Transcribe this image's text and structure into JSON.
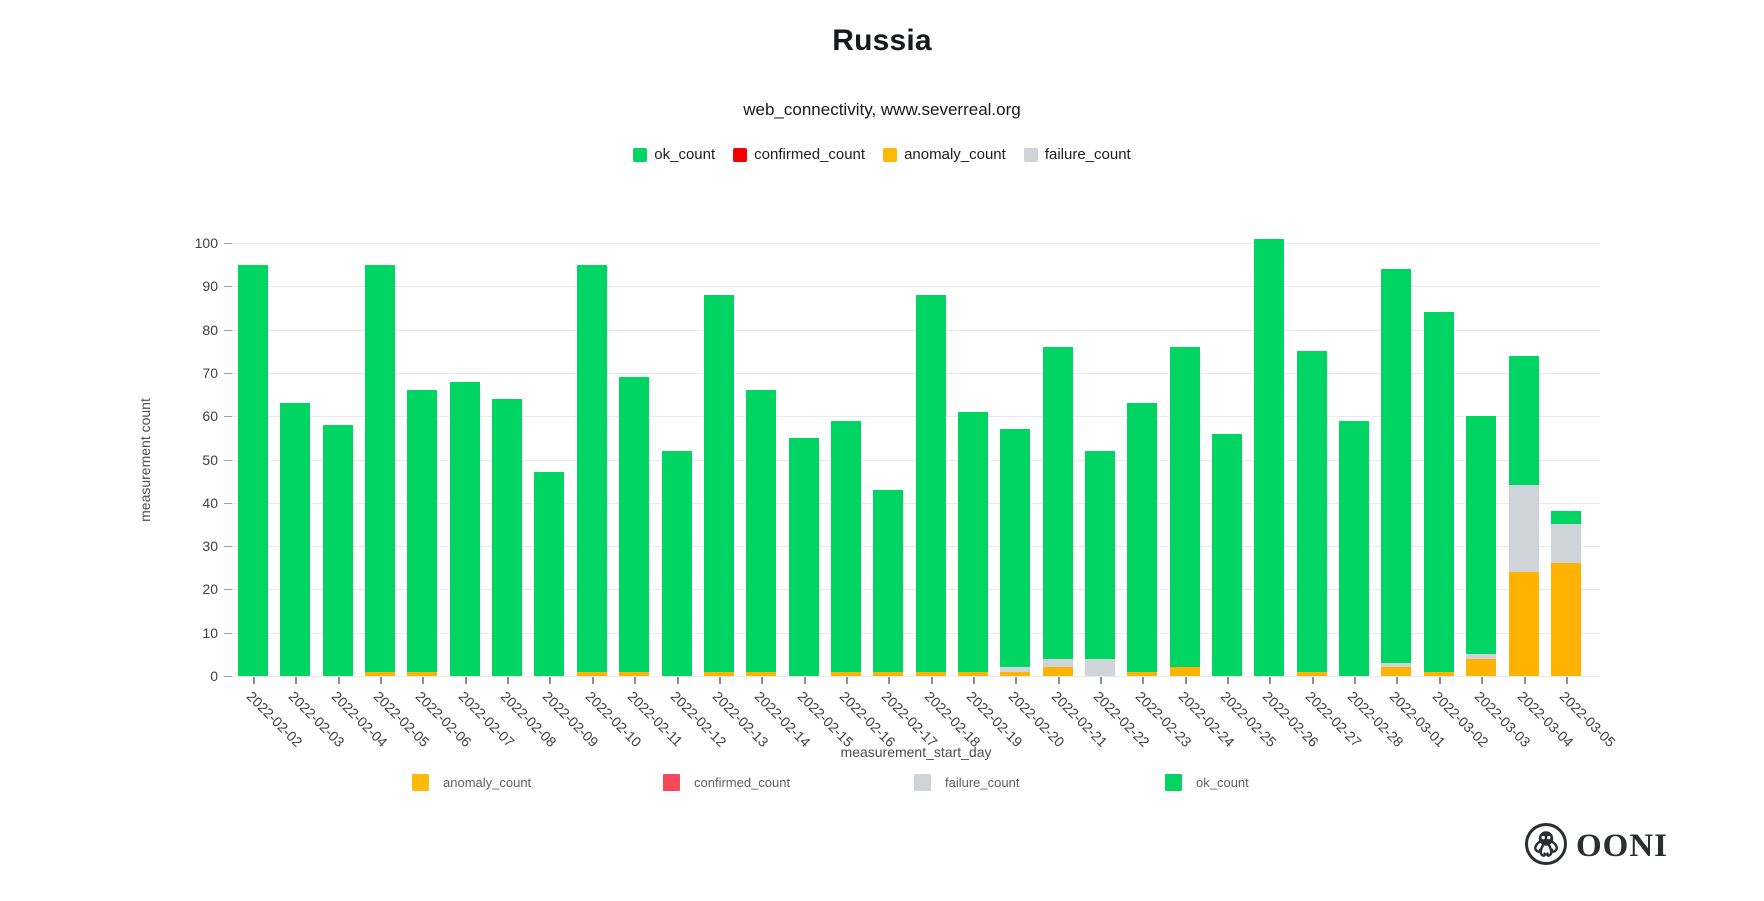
{
  "title": "Russia",
  "subtitle": "web_connectivity, www.severreal.org",
  "legend_top": [
    {
      "label": "ok_count",
      "color": "#00d563"
    },
    {
      "label": "confirmed_count",
      "color": "#f50000"
    },
    {
      "label": "anomaly_count",
      "color": "#ffb908"
    },
    {
      "label": "failure_count",
      "color": "#ced4da"
    }
  ],
  "legend_bottom": [
    {
      "label": "anomaly_count",
      "color": "#ffb908"
    },
    {
      "label": "confirmed_count",
      "color": "#f5495a"
    },
    {
      "label": "failure_count",
      "color": "#ced4da"
    },
    {
      "label": "ok_count",
      "color": "#00d563"
    }
  ],
  "chart_data": {
    "type": "bar",
    "stacked": true,
    "title": "Russia",
    "subtitle": "web_connectivity, www.severreal.org",
    "xlabel": "measurement_start_day",
    "ylabel": "measurement count",
    "ylim": [
      0,
      100
    ],
    "ytick_step": 10,
    "grid": true,
    "legend_position": "top",
    "stack_order_bottom_to_top": [
      "anomaly_count",
      "confirmed_count",
      "failure_count",
      "ok_count"
    ],
    "categories": [
      "2022-02-02",
      "2022-02-03",
      "2022-02-04",
      "2022-02-05",
      "2022-02-06",
      "2022-02-07",
      "2022-02-08",
      "2022-02-09",
      "2022-02-10",
      "2022-02-11",
      "2022-02-12",
      "2022-02-13",
      "2022-02-14",
      "2022-02-15",
      "2022-02-16",
      "2022-02-17",
      "2022-02-18",
      "2022-02-19",
      "2022-02-20",
      "2022-02-21",
      "2022-02-22",
      "2022-02-23",
      "2022-02-24",
      "2022-02-25",
      "2022-02-26",
      "2022-02-27",
      "2022-02-28",
      "2022-03-01",
      "2022-03-02",
      "2022-03-03",
      "2022-03-04",
      "2022-03-05"
    ],
    "series": [
      {
        "name": "ok_count",
        "color": "#00d563",
        "values": [
          95,
          63,
          58,
          94,
          65,
          68,
          64,
          47,
          94,
          68,
          52,
          87,
          65,
          55,
          58,
          42,
          87,
          60,
          55,
          72,
          48,
          62,
          74,
          56,
          101,
          74,
          59,
          91,
          83,
          55,
          30,
          3
        ]
      },
      {
        "name": "confirmed_count",
        "color": "#f50000",
        "values": [
          0,
          0,
          0,
          0,
          0,
          0,
          0,
          0,
          0,
          0,
          0,
          0,
          0,
          0,
          0,
          0,
          0,
          0,
          0,
          0,
          0,
          0,
          0,
          0,
          0,
          0,
          0,
          0,
          0,
          0,
          0,
          0
        ]
      },
      {
        "name": "anomaly_count",
        "color": "#ffb300",
        "values": [
          0,
          0,
          0,
          1,
          1,
          0,
          0,
          0,
          1,
          1,
          0,
          1,
          1,
          0,
          1,
          1,
          1,
          1,
          1,
          2,
          0,
          1,
          2,
          0,
          0,
          1,
          0,
          2,
          1,
          4,
          24,
          26
        ]
      },
      {
        "name": "failure_count",
        "color": "#ced4da",
        "values": [
          0,
          0,
          0,
          0,
          0,
          0,
          0,
          0,
          0,
          0,
          0,
          0,
          0,
          0,
          0,
          0,
          0,
          0,
          1,
          2,
          4,
          0,
          0,
          0,
          0,
          0,
          0,
          1,
          0,
          1,
          20,
          9
        ]
      }
    ]
  },
  "branding": {
    "logo_text": "OONI",
    "logo_icon": "ooni-octopus-icon"
  }
}
